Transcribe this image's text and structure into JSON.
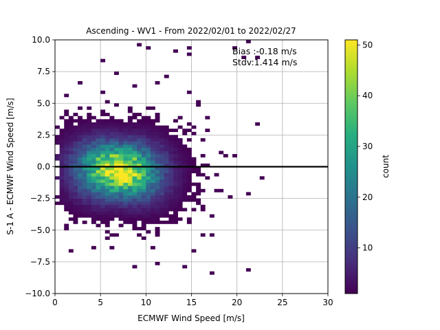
{
  "chart_data": {
    "type": "heatmap",
    "title": "Ascending - WV1 - From 2022/02/01 to 2022/02/27",
    "xlabel": "ECMWF Wind Speed [m/s]",
    "ylabel": "S-1 A - ECMWF Wind Speed [m/s]",
    "xlim": [
      0,
      30
    ],
    "ylim": [
      -10,
      10
    ],
    "xticks": [
      "0",
      "5",
      "10",
      "15",
      "20",
      "25",
      "30"
    ],
    "yticks": [
      "−10.0",
      "−7.5",
      "−5.0",
      "−2.5",
      "0.0",
      "2.5",
      "5.0",
      "7.5",
      "10.0"
    ],
    "xtick_values": [
      0,
      5,
      10,
      15,
      20,
      25,
      30
    ],
    "ytick_values": [
      -10,
      -7.5,
      -5,
      -2.5,
      0,
      2.5,
      5,
      7.5,
      10
    ],
    "grid": true,
    "annotations": [
      "Bias :-0.18 m/s",
      "Stdv:1.414 m/s"
    ],
    "reference_line_y": 0,
    "colorbar": {
      "label": "count",
      "min": 1,
      "max": 51,
      "ticks": [
        "10",
        "20",
        "30",
        "40",
        "50"
      ],
      "tick_values": [
        10,
        20,
        30,
        40,
        50
      ],
      "colormap": "viridis"
    },
    "density_model": {
      "description_values": "approximate 2D distribution of collocated samples",
      "bin_width_x": 0.5,
      "bin_height_y": 0.25,
      "center_x": 7.0,
      "center_y": -0.3,
      "spread_x": 3.0,
      "spread_y": 1.4,
      "peak_count": 51
    }
  }
}
